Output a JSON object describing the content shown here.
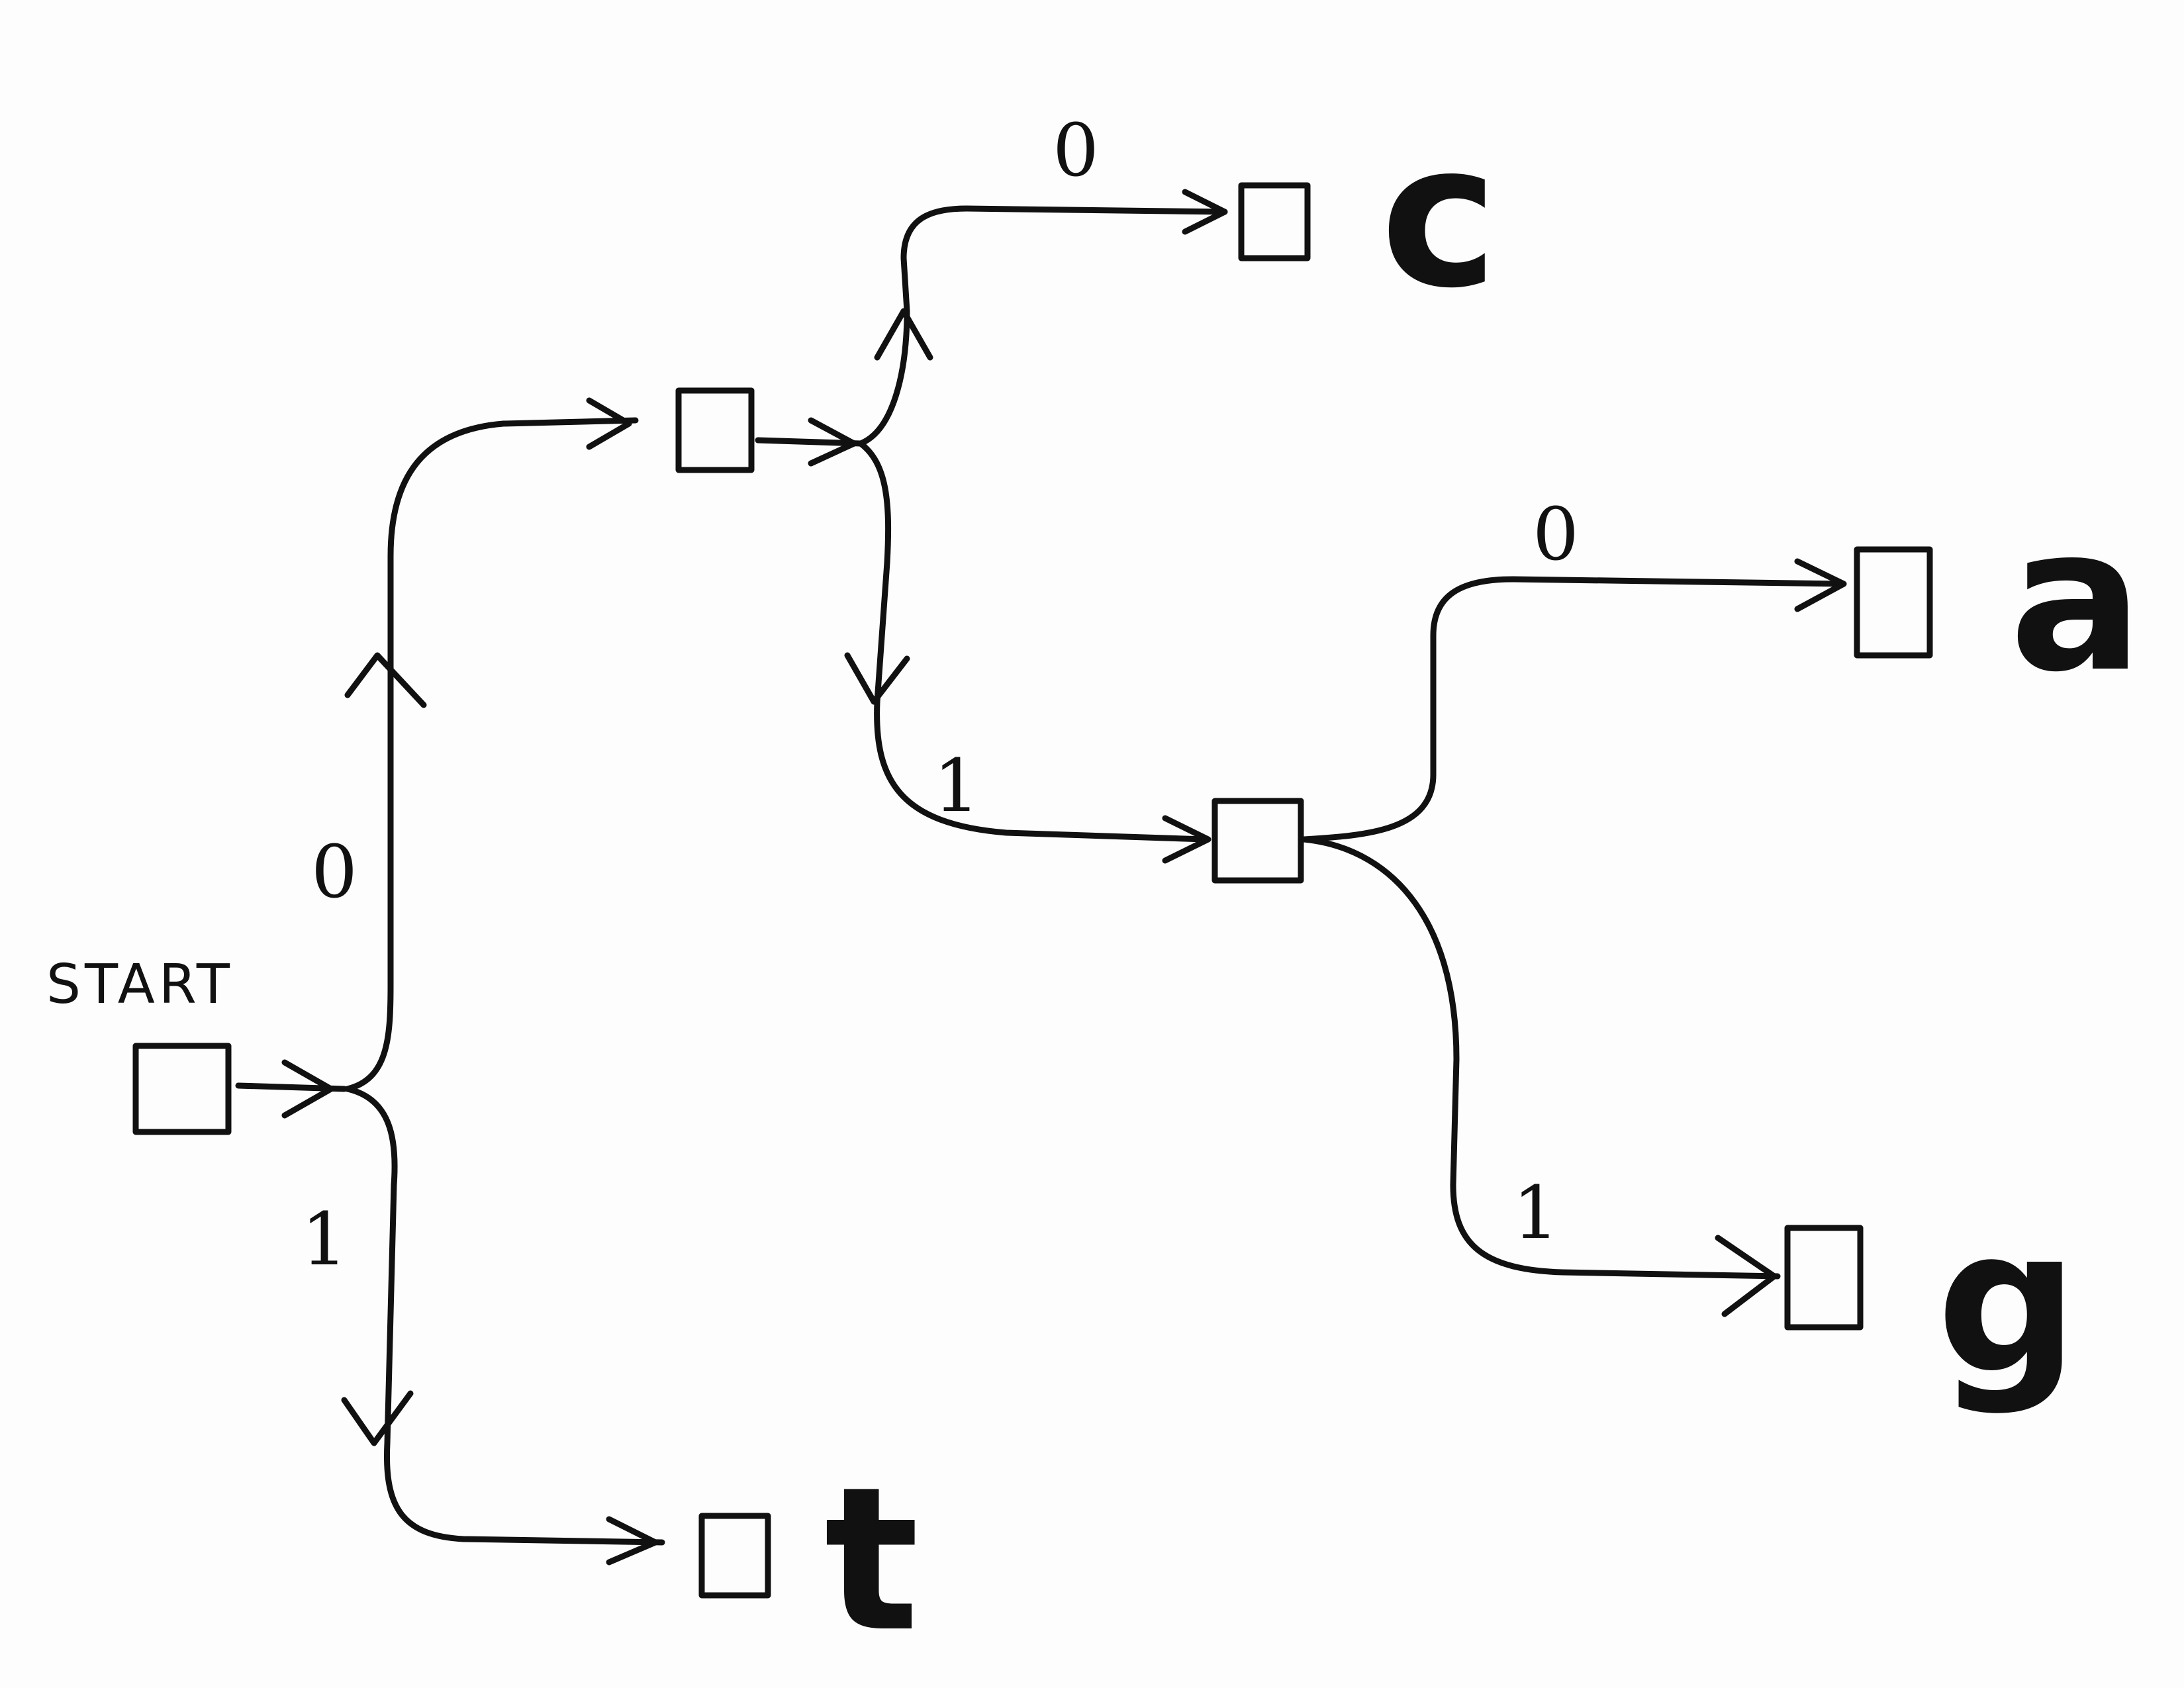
{
  "diagram": {
    "start_label": "START",
    "edges": {
      "root_top_label": "0",
      "root_bottom_label": "1",
      "upper_top_label": "0",
      "upper_bottom_label": "1",
      "lower_top_label": "0",
      "lower_bottom_label": "1"
    },
    "leaves": {
      "c": "c",
      "a": "a",
      "g": "g",
      "t": "t"
    }
  }
}
